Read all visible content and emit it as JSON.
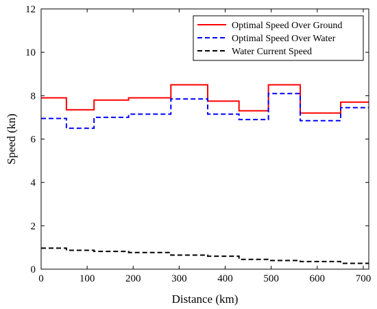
{
  "chart_data": {
    "type": "line",
    "xlabel": "Distance (km)",
    "ylabel": "Speed (kn)",
    "xlim": [
      0,
      712
    ],
    "ylim": [
      0,
      12
    ],
    "xticks": [
      0,
      100,
      200,
      300,
      400,
      500,
      600,
      700
    ],
    "yticks": [
      0,
      2,
      4,
      6,
      8,
      10,
      12
    ],
    "grid": false,
    "legend_position": "top-right",
    "series": [
      {
        "name": "Optimal Speed Over Ground",
        "color": "#ff0000",
        "style": "solid",
        "breaks": [
          0,
          55,
          115,
          190,
          282,
          362,
          430,
          494,
          563,
          651,
          712
        ],
        "values": [
          7.9,
          7.35,
          7.8,
          7.9,
          8.5,
          7.75,
          7.3,
          8.5,
          7.2,
          7.7
        ]
      },
      {
        "name": "Optimal Speed Over Water",
        "color": "#0000ff",
        "style": "dashed",
        "breaks": [
          0,
          55,
          115,
          190,
          282,
          362,
          430,
          494,
          563,
          651,
          712
        ],
        "values": [
          6.95,
          6.5,
          7.0,
          7.15,
          7.85,
          7.15,
          6.9,
          8.1,
          6.85,
          7.45
        ]
      },
      {
        "name": "Water Current Speed",
        "color": "#000000",
        "style": "dashed",
        "breaks": [
          0,
          55,
          115,
          190,
          282,
          362,
          430,
          494,
          563,
          651,
          712
        ],
        "values": [
          0.97,
          0.87,
          0.82,
          0.77,
          0.65,
          0.6,
          0.45,
          0.4,
          0.35,
          0.27
        ]
      }
    ]
  }
}
